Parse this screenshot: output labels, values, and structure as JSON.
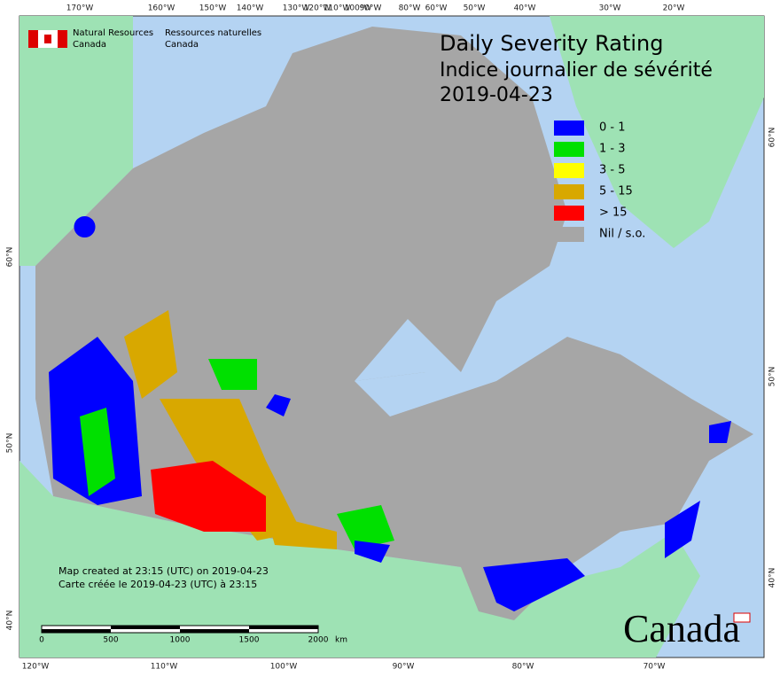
{
  "header": {
    "agency_en": "Natural Resources",
    "agency_en_country": "Canada",
    "agency_fr": "Ressources naturelles",
    "agency_fr_country": "Canada"
  },
  "title": {
    "line1": "Daily Severity Rating",
    "line2": "Indice journalier de sévérité",
    "date": "2019-04-23"
  },
  "legend": [
    {
      "label": "0 - 1",
      "color": "#0000ff"
    },
    {
      "label": "1 - 3",
      "color": "#00e000"
    },
    {
      "label": "3 - 5",
      "color": "#ffff00"
    },
    {
      "label": "5 - 15",
      "color": "#d8a800"
    },
    {
      "label": "> 15",
      "color": "#ff0000"
    },
    {
      "label": "Nil / s.o.",
      "color": "#a6a6a6"
    }
  ],
  "graticule": {
    "top": [
      "170°W",
      "160°W",
      "150°W",
      "140°W",
      "130°W",
      "120°W",
      "110°W",
      "100°W",
      "90°W",
      "80°W",
      "60°W",
      "50°W",
      "40°W",
      "30°W",
      "20°W"
    ],
    "bottom": [
      "120°W",
      "110°W",
      "100°W",
      "90°W",
      "80°W",
      "70°W"
    ],
    "left": [
      "60°N",
      "50°N",
      "40°N"
    ],
    "right": [
      "60°N",
      "50°N",
      "40°N"
    ]
  },
  "scale_bar": {
    "ticks": [
      "0",
      "500",
      "1000",
      "1500",
      "2000"
    ],
    "unit": "km"
  },
  "notes": [
    "Map created at 23:15 (UTC) on 2019-04-23",
    "Carte créée le 2019-04-23 (UTC) à 23:15"
  ],
  "wordmark": "Canada"
}
